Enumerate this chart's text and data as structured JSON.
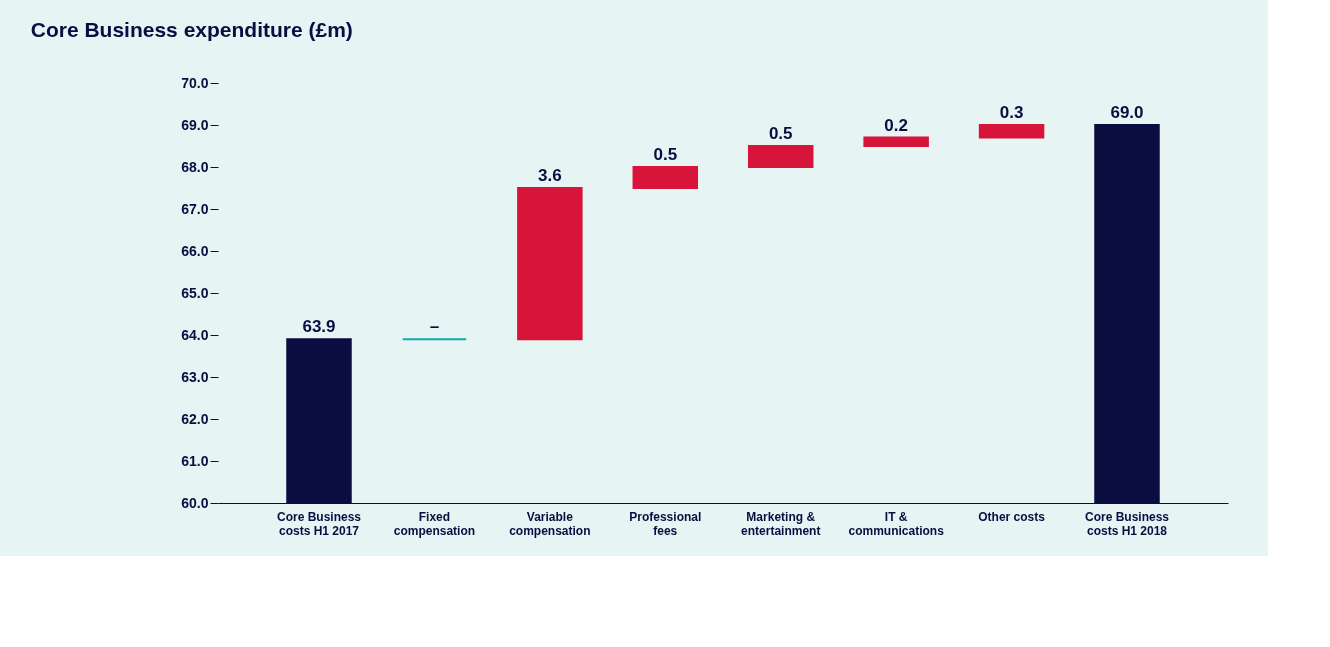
{
  "chart_data": {
    "type": "bar",
    "title": "Core Business expenditure (£m)",
    "categories": [
      "Core Business\ncosts H1 2017",
      "Fixed\ncompensation",
      "Variable\ncompensation",
      "Professional\nfees",
      "Marketing &\nentertainment",
      "IT &\ncommunications",
      "Other costs",
      "Core Business\ncosts H1 2018"
    ],
    "base": [
      60,
      63.9,
      63.9,
      67.5,
      68.0,
      68.5,
      68.7,
      60
    ],
    "values": [
      3.9,
      0,
      3.6,
      0.5,
      0.5,
      0.2,
      0.3,
      9.0
    ],
    "value_labels": [
      "63.9",
      "–",
      "3.6",
      "0.5",
      "0.5",
      "0.2",
      "0.3",
      "69.0"
    ],
    "colors": [
      "#0b0d40",
      "#1aa3b0",
      "#d71439",
      "#d71439",
      "#d71439",
      "#d71439",
      "#d71439",
      "#0b0d40"
    ],
    "ylim": [
      60,
      70
    ],
    "yticks": [
      {
        "value": 60,
        "label": "60.0"
      },
      {
        "value": 61,
        "label": "61.0"
      },
      {
        "value": 62,
        "label": "62.0"
      },
      {
        "value": 63,
        "label": "63.0"
      },
      {
        "value": 64,
        "label": "64.0"
      },
      {
        "value": 65,
        "label": "65.0"
      },
      {
        "value": 66,
        "label": "66.0"
      },
      {
        "value": 67,
        "label": "67.0"
      },
      {
        "value": 68,
        "label": "68.0"
      },
      {
        "value": 69,
        "label": "69.0"
      },
      {
        "value": 70,
        "label": "70.0"
      }
    ],
    "grid": false
  }
}
